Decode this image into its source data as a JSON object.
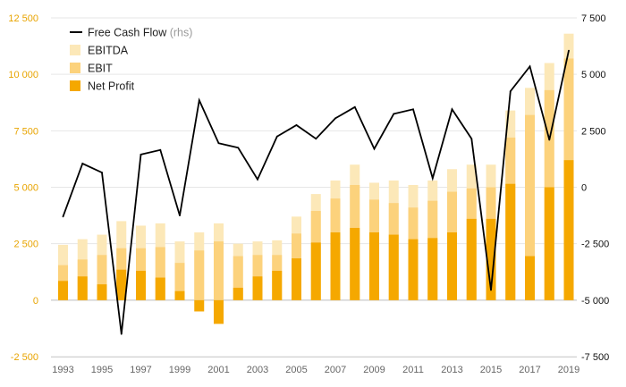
{
  "chart_data": {
    "type": "bar",
    "title": "",
    "xlabel": "",
    "ylabel": "",
    "categories": [
      "1993",
      "1994",
      "1995",
      "1996",
      "1997",
      "1998",
      "1999",
      "2000",
      "2001",
      "2002",
      "2003",
      "2004",
      "2005",
      "2006",
      "2007",
      "2008",
      "2009",
      "2010",
      "2011",
      "2012",
      "2013",
      "2014",
      "2015",
      "2016",
      "2017",
      "2018",
      "2019"
    ],
    "x_tick_labels": [
      "1993",
      "1995",
      "1997",
      "1999",
      "2001",
      "2003",
      "2005",
      "2007",
      "2009",
      "2011",
      "2013",
      "2015",
      "2017",
      "2019"
    ],
    "ylim_left": [
      -2500,
      12500
    ],
    "left_ticks": [
      -2500,
      0,
      2500,
      5000,
      7500,
      10000,
      12500
    ],
    "left_tick_labels": [
      "-2 500",
      "0",
      "2 500",
      "5 000",
      "7 500",
      "10 000",
      "12 500"
    ],
    "ylim_right": [
      -7500,
      7500
    ],
    "right_ticks": [
      -7500,
      -5000,
      -2500,
      0,
      2500,
      5000,
      7500
    ],
    "right_tick_labels": [
      "-7 500",
      "-5 000",
      "-2 500",
      "0",
      "2 500",
      "5 000",
      "7 500"
    ],
    "series": [
      {
        "name": "EBITDA",
        "kind": "bar",
        "axis": "left",
        "color": "#fce8b8",
        "values": [
          2450,
          2700,
          2900,
          3500,
          3300,
          3400,
          2600,
          3000,
          3400,
          2500,
          2600,
          2650,
          3700,
          4700,
          5300,
          6000,
          5200,
          5300,
          5100,
          5300,
          5800,
          6000,
          6000,
          8400,
          9400,
          10500,
          11800
        ]
      },
      {
        "name": "EBIT",
        "kind": "bar",
        "axis": "left",
        "color": "#fcd27c",
        "values": [
          1550,
          1800,
          2000,
          2300,
          2300,
          2350,
          1650,
          2200,
          2600,
          1950,
          2000,
          2000,
          2950,
          3950,
          4500,
          5100,
          4450,
          4300,
          4100,
          4400,
          4800,
          4950,
          5000,
          7200,
          8200,
          9300,
          10700
        ]
      },
      {
        "name": "Net Profit",
        "kind": "bar",
        "axis": "left",
        "color": "#f5a800",
        "values": [
          850,
          1050,
          700,
          1350,
          1300,
          1000,
          400,
          -500,
          -1050,
          550,
          1050,
          1300,
          1850,
          2550,
          3000,
          3200,
          3000,
          2900,
          2700,
          2750,
          3000,
          3600,
          3600,
          5150,
          1950,
          5000,
          6200
        ]
      },
      {
        "name": "Free Cash Flow",
        "note": "(rhs)",
        "kind": "line",
        "axis": "right",
        "color": "#000000",
        "values": [
          -1300,
          1050,
          650,
          -6500,
          1450,
          1650,
          -1250,
          3850,
          1950,
          1750,
          350,
          2250,
          2750,
          2150,
          3050,
          3550,
          1700,
          3250,
          3450,
          400,
          3450,
          2150,
          -4550,
          4250,
          5350,
          2100,
          6050
        ]
      }
    ],
    "legend": {
      "position": "top-left",
      "items": [
        {
          "label": "Free Cash Flow",
          "note": "(rhs)",
          "symbol": "line",
          "color": "#000000"
        },
        {
          "label": "EBITDA",
          "symbol": "box",
          "color": "#fce8b8"
        },
        {
          "label": "EBIT",
          "symbol": "box",
          "color": "#fcd27c"
        },
        {
          "label": "Net Profit",
          "symbol": "box",
          "color": "#f5a800"
        }
      ]
    },
    "colors": {
      "left_axis_text": "#e8a400",
      "right_axis_text": "#111111",
      "x_axis_text": "#666666",
      "gridline": "#e6e6e6",
      "zero_line": "#bdbdbd"
    }
  }
}
